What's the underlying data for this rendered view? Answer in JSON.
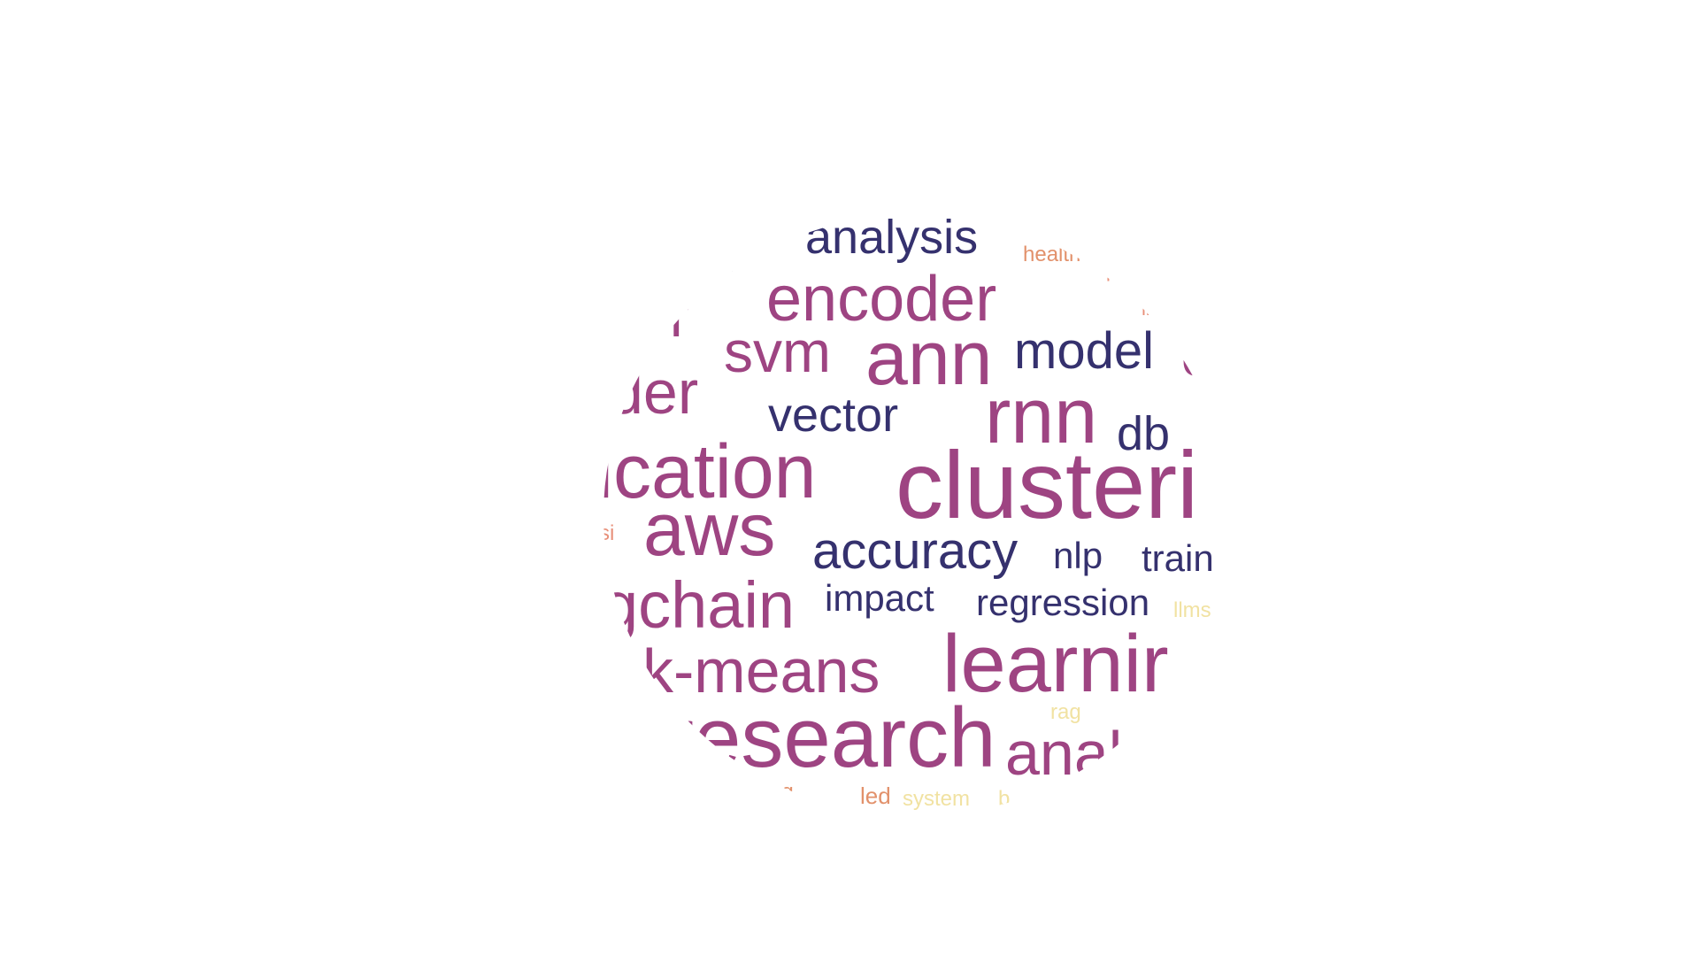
{
  "word_cloud": {
    "colors": {
      "background": "#ffffff",
      "navy": "#35316e",
      "magenta": "#9e4482",
      "orange": "#e2916b",
      "salmon": "#e8907a",
      "yellow": "#f1e2a2"
    },
    "words": [
      {
        "id": "analysis",
        "text": "analysis",
        "color": "navy"
      },
      {
        "id": "health",
        "text": "health",
        "color": "orange"
      },
      {
        "id": "on",
        "text": "on",
        "color": "navy"
      },
      {
        "id": "p-fragment",
        "text": "p",
        "color": "salmon"
      },
      {
        "id": "encoder",
        "text": "encoder",
        "color": "magenta"
      },
      {
        "id": "er",
        "text": "er",
        "color": "magenta"
      },
      {
        "id": "ll-fragment",
        "text": "ll",
        "color": "salmon"
      },
      {
        "id": "svm",
        "text": "svm",
        "color": "magenta"
      },
      {
        "id": "ann",
        "text": "ann",
        "color": "magenta"
      },
      {
        "id": "model",
        "text": "model",
        "color": "navy"
      },
      {
        "id": "c-fragment",
        "text": "c",
        "color": "magenta"
      },
      {
        "id": "der",
        "text": "der",
        "color": "magenta"
      },
      {
        "id": "vector",
        "text": "vector",
        "color": "navy"
      },
      {
        "id": "rnn",
        "text": "rnn",
        "color": "magenta"
      },
      {
        "id": "db",
        "text": "db",
        "color": "navy"
      },
      {
        "id": "fication",
        "text": "fication",
        "color": "magenta"
      },
      {
        "id": "clusteri",
        "text": "clusteri",
        "color": "magenta"
      },
      {
        "id": "csi",
        "text": "csi",
        "color": "salmon"
      },
      {
        "id": "aws",
        "text": "aws",
        "color": "magenta"
      },
      {
        "id": "accuracy",
        "text": "accuracy",
        "color": "navy"
      },
      {
        "id": "nlp",
        "text": "nlp",
        "color": "navy"
      },
      {
        "id": "train",
        "text": "train",
        "color": "navy"
      },
      {
        "id": "gchain",
        "text": "gchain",
        "color": "magenta"
      },
      {
        "id": "impact",
        "text": "impact",
        "color": "navy"
      },
      {
        "id": "regression",
        "text": "regression",
        "color": "navy"
      },
      {
        "id": "llms",
        "text": "llms",
        "color": "yellow"
      },
      {
        "id": "k-means",
        "text": "k-means",
        "color": "magenta"
      },
      {
        "id": "learnir",
        "text": "learnir",
        "color": "magenta"
      },
      {
        "id": "rag",
        "text": "rag",
        "color": "yellow"
      },
      {
        "id": "research",
        "text": "research",
        "color": "magenta"
      },
      {
        "id": "anal",
        "text": "anal",
        "color": "magenta"
      },
      {
        "id": "ting",
        "text": "ting",
        "color": "orange"
      },
      {
        "id": "led",
        "text": "led",
        "color": "orange"
      },
      {
        "id": "system",
        "text": "system",
        "color": "yellow"
      },
      {
        "id": "b-fragment",
        "text": "b",
        "color": "yellow"
      }
    ]
  }
}
